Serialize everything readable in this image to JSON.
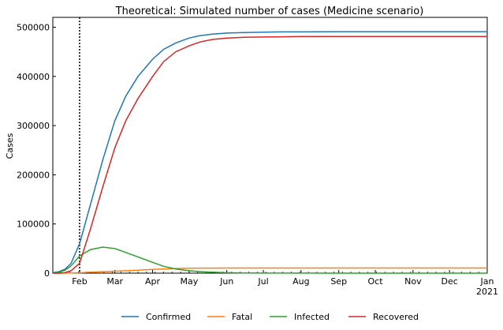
{
  "chart_data": {
    "type": "line",
    "title": "Theoretical: Simulated number of cases (Medicine scenario)",
    "xlabel": "",
    "ylabel": "Cases",
    "ylim": [
      0,
      520000
    ],
    "y_ticks": [
      "0",
      "100000",
      "200000",
      "300000",
      "400000",
      "500000"
    ],
    "x_tick_labels": [
      "Feb",
      "Mar",
      "Apr",
      "May",
      "Jun",
      "Jul",
      "Aug",
      "Sep",
      "Oct",
      "Nov",
      "Dec",
      "Jan"
    ],
    "x_year_label": "2021",
    "xlim": [
      "2020-01-10",
      "2021-01-01"
    ],
    "vline_date": "2020-02-01",
    "grid": false,
    "legend_position": "bottom",
    "x": [
      "2020-01-10",
      "2020-01-15",
      "2020-01-20",
      "2020-01-25",
      "2020-02-01",
      "2020-02-10",
      "2020-02-20",
      "2020-03-01",
      "2020-03-10",
      "2020-03-20",
      "2020-04-01",
      "2020-04-10",
      "2020-04-20",
      "2020-05-01",
      "2020-05-10",
      "2020-05-20",
      "2020-06-01",
      "2020-06-15",
      "2020-07-01",
      "2020-07-15",
      "2020-08-01",
      "2020-09-01",
      "2020-10-01",
      "2020-11-01",
      "2020-12-01",
      "2021-01-01"
    ],
    "series": [
      {
        "name": "Confirmed",
        "color": "#1f77b4",
        "values": [
          1000,
          3000,
          8000,
          20000,
          60000,
          140000,
          230000,
          310000,
          360000,
          400000,
          435000,
          455000,
          468000,
          478000,
          483000,
          486000,
          488000,
          489000,
          490000,
          490500,
          490500,
          491000,
          491000,
          491000,
          491000,
          491000
        ]
      },
      {
        "name": "Fatal",
        "color": "#ff7f0e",
        "values": [
          0,
          0,
          100,
          300,
          800,
          2000,
          3000,
          4000,
          5000,
          6000,
          7500,
          8500,
          9500,
          10000,
          10200,
          10300,
          10400,
          10500,
          10500,
          10500,
          10500,
          10500,
          10500,
          10500,
          10500,
          10500
        ]
      },
      {
        "name": "Infected",
        "color": "#2ca02c",
        "values": [
          500,
          2000,
          6000,
          15000,
          35000,
          48000,
          53000,
          50000,
          42000,
          33000,
          22000,
          14000,
          8500,
          5000,
          3000,
          2000,
          1000,
          500,
          200,
          100,
          100,
          0,
          0,
          0,
          0,
          0
        ]
      },
      {
        "name": "Recovered",
        "color": "#d62728",
        "values": [
          0,
          0,
          1000,
          5000,
          20000,
          90000,
          175000,
          255000,
          310000,
          355000,
          400000,
          430000,
          450000,
          462000,
          470000,
          475000,
          478000,
          479500,
          480000,
          480500,
          481000,
          481000,
          481000,
          481000,
          481000,
          481000
        ]
      }
    ]
  }
}
